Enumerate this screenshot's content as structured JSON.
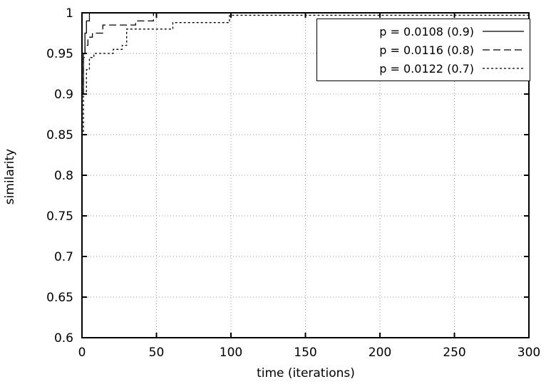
{
  "figure": {
    "background": "#ffffff",
    "axis_color": "#000000",
    "grid_color": "#9a9a9a",
    "line_color": "#000000"
  },
  "chart_data": {
    "type": "line",
    "step": true,
    "title": "",
    "xlabel": "time (iterations)",
    "ylabel": "similarity",
    "xlim": [
      0,
      300
    ],
    "ylim": [
      0.6,
      1.0
    ],
    "xticks": [
      0,
      50,
      100,
      150,
      200,
      250,
      300
    ],
    "xtick_labels": [
      "0",
      "50",
      "100",
      "150",
      "200",
      "250",
      "300"
    ],
    "yticks": [
      0.6,
      0.65,
      0.7,
      0.75,
      0.8,
      0.85,
      0.9,
      0.95,
      1.0
    ],
    "ytick_labels": [
      "0.6",
      "0.65",
      "0.7",
      "0.75",
      "0.8",
      "0.85",
      "0.9",
      "0.95",
      "1"
    ],
    "grid": true,
    "legend_position": "top-right",
    "series": [
      {
        "name": "p = 0.0108 (0.9)",
        "style": "solid",
        "x": [
          0,
          1,
          2,
          3,
          5,
          300
        ],
        "y": [
          0.9,
          0.95,
          0.975,
          0.99,
          1.0,
          1.0
        ]
      },
      {
        "name": "p = 0.0116 (0.8)",
        "style": "dashed",
        "x": [
          0,
          1,
          2,
          4,
          7,
          12,
          14,
          33,
          36,
          46,
          48,
          300
        ],
        "y": [
          0.9,
          0.945,
          0.96,
          0.97,
          0.975,
          0.975,
          0.985,
          0.985,
          0.99,
          0.99,
          1.0,
          1.0
        ]
      },
      {
        "name": "p = 0.0122 (0.7)",
        "style": "dotted",
        "x": [
          0,
          1,
          3,
          5,
          8,
          18,
          21,
          27,
          30,
          57,
          61,
          96,
          99,
          300
        ],
        "y": [
          0.85,
          0.9,
          0.93,
          0.945,
          0.95,
          0.95,
          0.955,
          0.96,
          0.98,
          0.98,
          0.988,
          0.988,
          0.997,
          0.997
        ]
      }
    ]
  }
}
